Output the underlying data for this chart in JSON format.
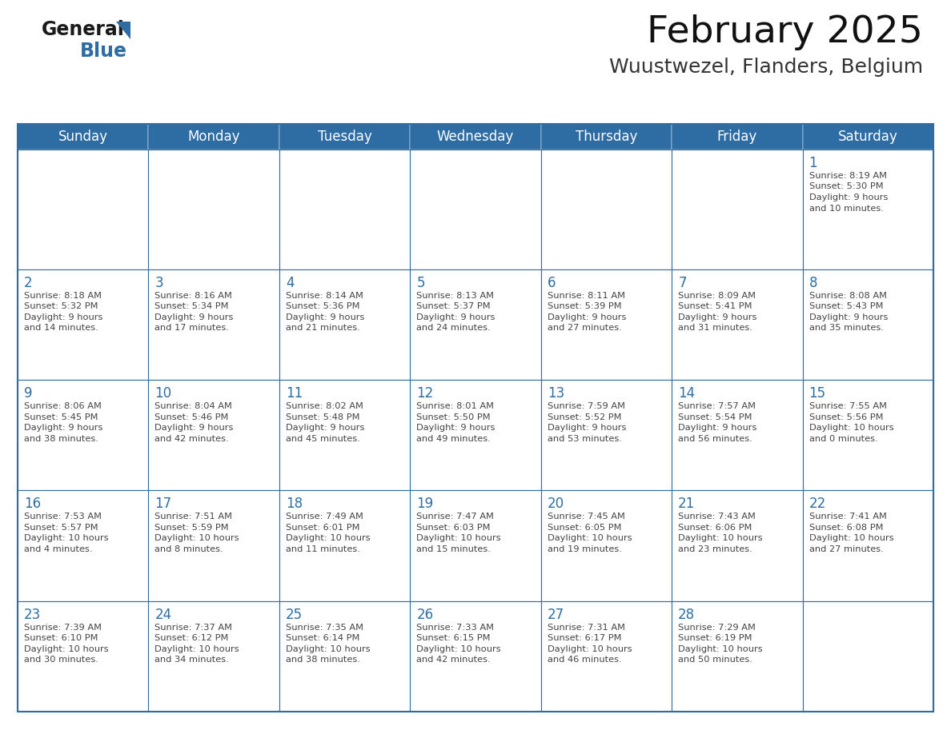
{
  "title": "February 2025",
  "subtitle": "Wuustwezel, Flanders, Belgium",
  "header_bg": "#2E6DA4",
  "header_text": "#FFFFFF",
  "cell_bg": "#FFFFFF",
  "day_number_color": "#2E6DA4",
  "text_color": "#444444",
  "border_color": "#2E6DA4",
  "days_of_week": [
    "Sunday",
    "Monday",
    "Tuesday",
    "Wednesday",
    "Thursday",
    "Friday",
    "Saturday"
  ],
  "calendar_data": [
    [
      null,
      null,
      null,
      null,
      null,
      null,
      {
        "day": 1,
        "sunrise": "8:19 AM",
        "sunset": "5:30 PM",
        "daylight": "9 hours and 10 minutes."
      }
    ],
    [
      {
        "day": 2,
        "sunrise": "8:18 AM",
        "sunset": "5:32 PM",
        "daylight": "9 hours and 14 minutes."
      },
      {
        "day": 3,
        "sunrise": "8:16 AM",
        "sunset": "5:34 PM",
        "daylight": "9 hours and 17 minutes."
      },
      {
        "day": 4,
        "sunrise": "8:14 AM",
        "sunset": "5:36 PM",
        "daylight": "9 hours and 21 minutes."
      },
      {
        "day": 5,
        "sunrise": "8:13 AM",
        "sunset": "5:37 PM",
        "daylight": "9 hours and 24 minutes."
      },
      {
        "day": 6,
        "sunrise": "8:11 AM",
        "sunset": "5:39 PM",
        "daylight": "9 hours and 27 minutes."
      },
      {
        "day": 7,
        "sunrise": "8:09 AM",
        "sunset": "5:41 PM",
        "daylight": "9 hours and 31 minutes."
      },
      {
        "day": 8,
        "sunrise": "8:08 AM",
        "sunset": "5:43 PM",
        "daylight": "9 hours and 35 minutes."
      }
    ],
    [
      {
        "day": 9,
        "sunrise": "8:06 AM",
        "sunset": "5:45 PM",
        "daylight": "9 hours and 38 minutes."
      },
      {
        "day": 10,
        "sunrise": "8:04 AM",
        "sunset": "5:46 PM",
        "daylight": "9 hours and 42 minutes."
      },
      {
        "day": 11,
        "sunrise": "8:02 AM",
        "sunset": "5:48 PM",
        "daylight": "9 hours and 45 minutes."
      },
      {
        "day": 12,
        "sunrise": "8:01 AM",
        "sunset": "5:50 PM",
        "daylight": "9 hours and 49 minutes."
      },
      {
        "day": 13,
        "sunrise": "7:59 AM",
        "sunset": "5:52 PM",
        "daylight": "9 hours and 53 minutes."
      },
      {
        "day": 14,
        "sunrise": "7:57 AM",
        "sunset": "5:54 PM",
        "daylight": "9 hours and 56 minutes."
      },
      {
        "day": 15,
        "sunrise": "7:55 AM",
        "sunset": "5:56 PM",
        "daylight": "10 hours and 0 minutes."
      }
    ],
    [
      {
        "day": 16,
        "sunrise": "7:53 AM",
        "sunset": "5:57 PM",
        "daylight": "10 hours and 4 minutes."
      },
      {
        "day": 17,
        "sunrise": "7:51 AM",
        "sunset": "5:59 PM",
        "daylight": "10 hours and 8 minutes."
      },
      {
        "day": 18,
        "sunrise": "7:49 AM",
        "sunset": "6:01 PM",
        "daylight": "10 hours and 11 minutes."
      },
      {
        "day": 19,
        "sunrise": "7:47 AM",
        "sunset": "6:03 PM",
        "daylight": "10 hours and 15 minutes."
      },
      {
        "day": 20,
        "sunrise": "7:45 AM",
        "sunset": "6:05 PM",
        "daylight": "10 hours and 19 minutes."
      },
      {
        "day": 21,
        "sunrise": "7:43 AM",
        "sunset": "6:06 PM",
        "daylight": "10 hours and 23 minutes."
      },
      {
        "day": 22,
        "sunrise": "7:41 AM",
        "sunset": "6:08 PM",
        "daylight": "10 hours and 27 minutes."
      }
    ],
    [
      {
        "day": 23,
        "sunrise": "7:39 AM",
        "sunset": "6:10 PM",
        "daylight": "10 hours and 30 minutes."
      },
      {
        "day": 24,
        "sunrise": "7:37 AM",
        "sunset": "6:12 PM",
        "daylight": "10 hours and 34 minutes."
      },
      {
        "day": 25,
        "sunrise": "7:35 AM",
        "sunset": "6:14 PM",
        "daylight": "10 hours and 38 minutes."
      },
      {
        "day": 26,
        "sunrise": "7:33 AM",
        "sunset": "6:15 PM",
        "daylight": "10 hours and 42 minutes."
      },
      {
        "day": 27,
        "sunrise": "7:31 AM",
        "sunset": "6:17 PM",
        "daylight": "10 hours and 46 minutes."
      },
      {
        "day": 28,
        "sunrise": "7:29 AM",
        "sunset": "6:19 PM",
        "daylight": "10 hours and 50 minutes."
      },
      null
    ]
  ],
  "logo_color_general": "#1a1a1a",
  "logo_color_blue": "#2E6DA4",
  "title_fontsize": 34,
  "subtitle_fontsize": 18,
  "header_fontsize": 12,
  "day_number_fontsize": 12,
  "cell_text_fontsize": 8.2
}
